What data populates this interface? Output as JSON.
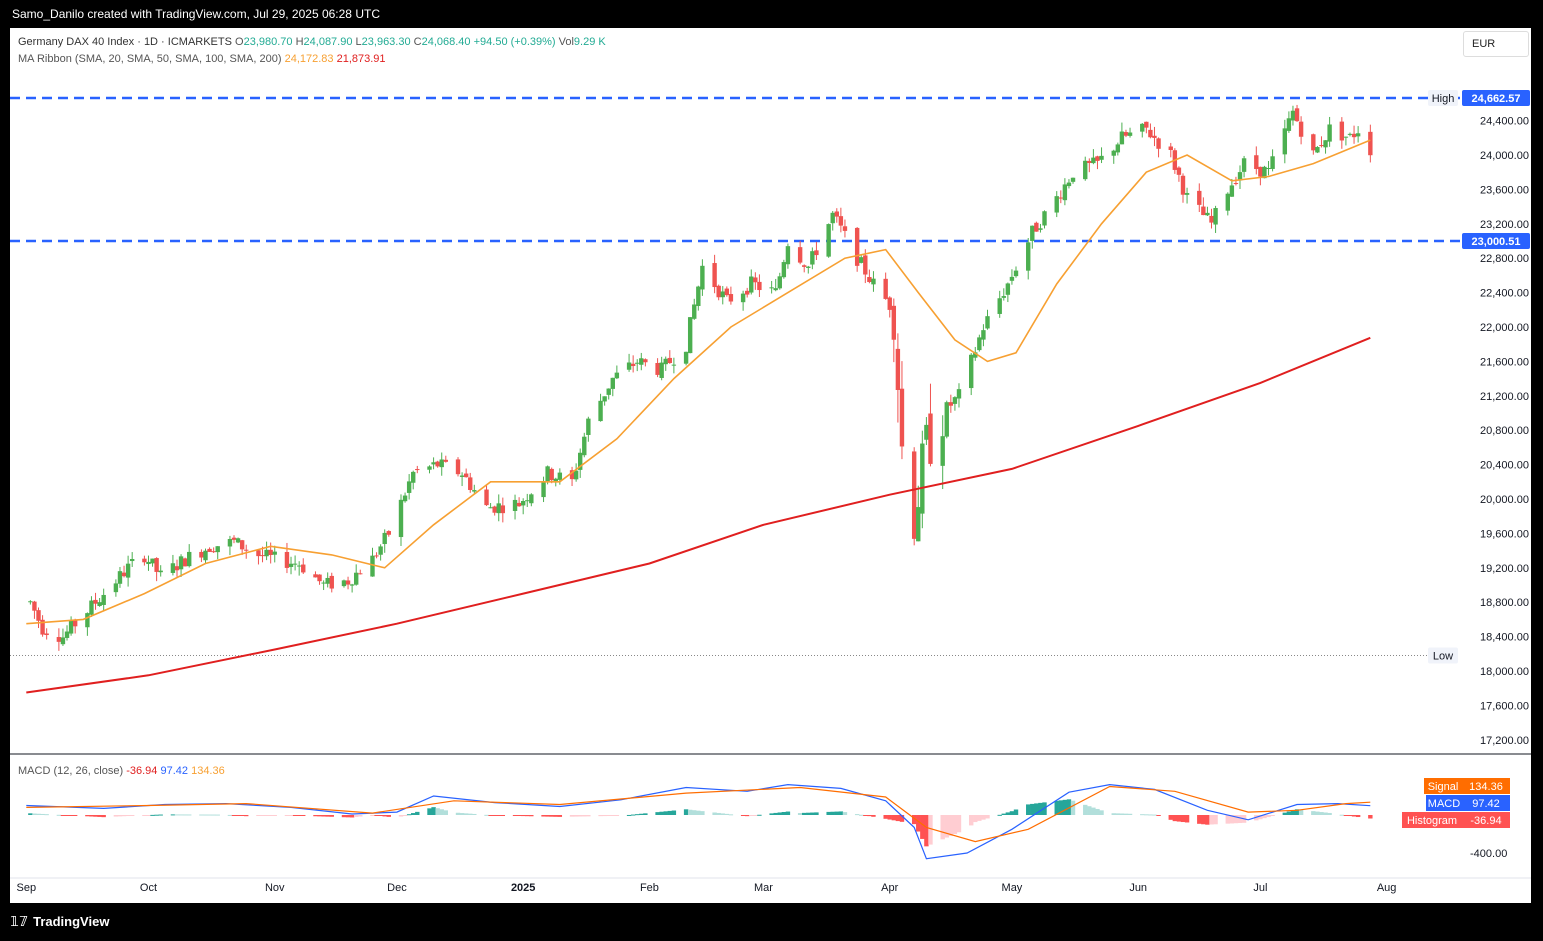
{
  "topbar": {
    "caption": "Samo_Danilo created with TradingView.com, Jul 29, 2025 06:28 UTC"
  },
  "footer": {
    "brand": "TradingView",
    "logo_icon": "tradingview-logo-icon"
  },
  "header": {
    "symbol": "Germany DAX 40 Index · 1D · ICMARKETS",
    "open_label": "O",
    "open": "23,980.70",
    "high_label": "H",
    "high": "24,087.90",
    "low_label": "L",
    "low": "23,963.30",
    "close_label": "C",
    "close": "24,068.40",
    "change": "+94.50 (+0.39%)",
    "vol_label": "Vol",
    "volume": "9.29 K",
    "ma_label": "MA Ribbon (SMA, 20, SMA, 50, SMA, 100, SMA, 200)",
    "ma_fast": "24,172.83",
    "ma_slow": "21,873.91",
    "currency": "EUR"
  },
  "macd_header": {
    "label": "MACD (12, 26, close)",
    "hist": "-36.94",
    "macd": "97.42",
    "signal": "134.36"
  },
  "colors": {
    "up": "#4caf50",
    "down": "#ef5350",
    "ma20": "#f7a032",
    "ma200": "#e01f1f",
    "level": "#2962ff",
    "macd": "#2962ff",
    "signal": "#ff6d00",
    "hist_up_strong": "#26a69a",
    "hist_up_weak": "#b2dfdb",
    "hist_down_strong": "#ff5252",
    "hist_down_weak": "#ffcdd2",
    "axis_text": "#131722"
  },
  "chart_data": [
    {
      "type": "candlestick",
      "title": "Germany DAX 40 Index · 1D · ICMARKETS",
      "y_ticks": [
        "17,200.00",
        "17,600.00",
        "18,000.00",
        "18,400.00",
        "18,800.00",
        "19,200.00",
        "19,600.00",
        "20,000.00",
        "20,400.00",
        "20,800.00",
        "21,200.00",
        "21,600.00",
        "22,000.00",
        "22,400.00",
        "22,800.00",
        "23,200.00",
        "23,600.00",
        "24,000.00",
        "24,400.00"
      ],
      "y_tick_values": [
        17200,
        17600,
        18000,
        18400,
        18800,
        19200,
        19600,
        20000,
        20400,
        20800,
        21200,
        21600,
        22000,
        22400,
        22800,
        23200,
        23600,
        24000,
        24400
      ],
      "ylim": [
        17000,
        24800
      ],
      "x_ticks": [
        "Sep",
        "Oct",
        "Nov",
        "Dec",
        "2025",
        "Feb",
        "Mar",
        "Apr",
        "May",
        "Jun",
        "Jul",
        "Aug"
      ],
      "x_tick_dates": [
        "2024-09-01",
        "2024-10-01",
        "2024-11-01",
        "2024-12-01",
        "2025-01-01",
        "2025-02-01",
        "2025-03-01",
        "2025-04-01",
        "2025-05-01",
        "2025-06-01",
        "2025-07-01",
        "2025-08-01"
      ],
      "levels": [
        {
          "name": "resistance",
          "value": 24662.57,
          "label": "24,662.57",
          "style": "dashed"
        },
        {
          "name": "support",
          "value": 23000.51,
          "label": "23,000.51",
          "style": "dashed"
        }
      ],
      "high_marker": {
        "label": "High",
        "value": 24662.57
      },
      "low_marker": {
        "label": "Low",
        "value": 18180
      },
      "close_path": [
        [
          "2024-09-01",
          18900
        ],
        [
          "2024-09-05",
          18500
        ],
        [
          "2024-09-10",
          18400
        ],
        [
          "2024-09-16",
          18700
        ],
        [
          "2024-09-20",
          18900
        ],
        [
          "2024-09-26",
          19200
        ],
        [
          "2024-09-30",
          19350
        ],
        [
          "2024-10-04",
          19100
        ],
        [
          "2024-10-10",
          19300
        ],
        [
          "2024-10-16",
          19450
        ],
        [
          "2024-10-22",
          19500
        ],
        [
          "2024-10-28",
          19350
        ],
        [
          "2024-11-01",
          19300
        ],
        [
          "2024-11-07",
          19250
        ],
        [
          "2024-11-13",
          19000
        ],
        [
          "2024-11-19",
          19050
        ],
        [
          "2024-11-25",
          19300
        ],
        [
          "2024-11-29",
          19600
        ],
        [
          "2024-12-05",
          20300
        ],
        [
          "2024-12-11",
          20400
        ],
        [
          "2024-12-17",
          20300
        ],
        [
          "2024-12-23",
          19900
        ],
        [
          "2024-12-31",
          19950
        ],
        [
          "2025-01-07",
          20300
        ],
        [
          "2025-01-13",
          20200
        ],
        [
          "2025-01-17",
          20900
        ],
        [
          "2025-01-23",
          21400
        ],
        [
          "2025-01-29",
          21600
        ],
        [
          "2025-02-04",
          21500
        ],
        [
          "2025-02-10",
          21800
        ],
        [
          "2025-02-14",
          22700
        ],
        [
          "2025-02-20",
          22300
        ],
        [
          "2025-02-26",
          22500
        ],
        [
          "2025-03-04",
          22400
        ],
        [
          "2025-03-07",
          23000
        ],
        [
          "2025-03-12",
          22700
        ],
        [
          "2025-03-18",
          23300
        ],
        [
          "2025-03-24",
          22800
        ],
        [
          "2025-03-28",
          22500
        ],
        [
          "2025-04-02",
          22200
        ],
        [
          "2025-04-04",
          20600
        ],
        [
          "2025-04-07",
          19800
        ],
        [
          "2025-04-10",
          20600
        ],
        [
          "2025-04-14",
          21000
        ],
        [
          "2025-04-18",
          21200
        ],
        [
          "2025-04-24",
          22000
        ],
        [
          "2025-04-30",
          22500
        ],
        [
          "2025-05-06",
          23100
        ],
        [
          "2025-05-12",
          23500
        ],
        [
          "2025-05-16",
          23800
        ],
        [
          "2025-05-22",
          23900
        ],
        [
          "2025-05-28",
          24200
        ],
        [
          "2025-06-03",
          24300
        ],
        [
          "2025-06-09",
          24000
        ],
        [
          "2025-06-13",
          23500
        ],
        [
          "2025-06-19",
          23200
        ],
        [
          "2025-06-23",
          23600
        ],
        [
          "2025-06-27",
          23900
        ],
        [
          "2025-07-03",
          23800
        ],
        [
          "2025-07-09",
          24500
        ],
        [
          "2025-07-14",
          24000
        ],
        [
          "2025-07-18",
          24300
        ],
        [
          "2025-07-23",
          24200
        ],
        [
          "2025-07-25",
          24300
        ],
        [
          "2025-07-28",
          24068
        ]
      ],
      "ma20_path": [
        [
          "2024-09-01",
          18550
        ],
        [
          "2024-09-15",
          18600
        ],
        [
          "2024-09-30",
          18900
        ],
        [
          "2024-10-15",
          19250
        ],
        [
          "2024-10-31",
          19450
        ],
        [
          "2024-11-15",
          19350
        ],
        [
          "2024-11-28",
          19200
        ],
        [
          "2024-12-10",
          19700
        ],
        [
          "2024-12-24",
          20200
        ],
        [
          "2025-01-10",
          20200
        ],
        [
          "2025-01-24",
          20700
        ],
        [
          "2025-02-07",
          21400
        ],
        [
          "2025-02-21",
          22000
        ],
        [
          "2025-03-07",
          22400
        ],
        [
          "2025-03-21",
          22800
        ],
        [
          "2025-03-31",
          22900
        ],
        [
          "2025-04-08",
          22400
        ],
        [
          "2025-04-17",
          21850
        ],
        [
          "2025-04-25",
          21600
        ],
        [
          "2025-05-02",
          21700
        ],
        [
          "2025-05-12",
          22500
        ],
        [
          "2025-05-23",
          23200
        ],
        [
          "2025-06-03",
          23800
        ],
        [
          "2025-06-13",
          24000
        ],
        [
          "2025-06-24",
          23700
        ],
        [
          "2025-07-03",
          23750
        ],
        [
          "2025-07-14",
          23900
        ],
        [
          "2025-07-28",
          24172.83
        ]
      ],
      "ma200_path": [
        [
          "2024-09-01",
          17750
        ],
        [
          "2024-10-01",
          17950
        ],
        [
          "2024-11-01",
          18250
        ],
        [
          "2024-12-01",
          18550
        ],
        [
          "2025-01-01",
          18900
        ],
        [
          "2025-02-01",
          19250
        ],
        [
          "2025-03-01",
          19700
        ],
        [
          "2025-04-01",
          20050
        ],
        [
          "2025-05-01",
          20350
        ],
        [
          "2025-06-01",
          20850
        ],
        [
          "2025-07-01",
          21350
        ],
        [
          "2025-07-28",
          21873.91
        ]
      ]
    },
    {
      "type": "macd",
      "title": "MACD (12, 26, close)",
      "y_ticks": [
        "-400.00"
      ],
      "y_tick_values": [
        -400
      ],
      "ylim": [
        -560,
        360
      ],
      "legend": [
        {
          "name": "Signal",
          "value": "134.36"
        },
        {
          "name": "MACD",
          "value": "97.42"
        },
        {
          "name": "Histogram",
          "value": "-36.94"
        }
      ],
      "macd_path": [
        [
          "2024-09-01",
          100
        ],
        [
          "2024-09-20",
          70
        ],
        [
          "2024-10-05",
          110
        ],
        [
          "2024-10-20",
          120
        ],
        [
          "2024-11-05",
          80
        ],
        [
          "2024-11-20",
          10
        ],
        [
          "2024-12-01",
          30
        ],
        [
          "2024-12-10",
          200
        ],
        [
          "2024-12-25",
          130
        ],
        [
          "2025-01-10",
          90
        ],
        [
          "2025-01-25",
          160
        ],
        [
          "2025-02-10",
          290
        ],
        [
          "2025-02-25",
          250
        ],
        [
          "2025-03-07",
          320
        ],
        [
          "2025-03-20",
          280
        ],
        [
          "2025-03-31",
          150
        ],
        [
          "2025-04-07",
          -130
        ],
        [
          "2025-04-10",
          -460
        ],
        [
          "2025-04-20",
          -400
        ],
        [
          "2025-05-01",
          -150
        ],
        [
          "2025-05-15",
          240
        ],
        [
          "2025-05-25",
          320
        ],
        [
          "2025-06-05",
          270
        ],
        [
          "2025-06-18",
          50
        ],
        [
          "2025-06-28",
          -50
        ],
        [
          "2025-07-10",
          110
        ],
        [
          "2025-07-20",
          120
        ],
        [
          "2025-07-28",
          97.42
        ]
      ],
      "signal_path": [
        [
          "2024-09-01",
          80
        ],
        [
          "2024-10-01",
          100
        ],
        [
          "2024-10-25",
          120
        ],
        [
          "2024-11-25",
          20
        ],
        [
          "2024-12-15",
          150
        ],
        [
          "2025-01-10",
          110
        ],
        [
          "2025-02-10",
          230
        ],
        [
          "2025-03-10",
          290
        ],
        [
          "2025-03-31",
          190
        ],
        [
          "2025-04-10",
          -130
        ],
        [
          "2025-04-22",
          -280
        ],
        [
          "2025-05-05",
          -150
        ],
        [
          "2025-05-25",
          300
        ],
        [
          "2025-06-10",
          250
        ],
        [
          "2025-06-28",
          30
        ],
        [
          "2025-07-10",
          50
        ],
        [
          "2025-07-22",
          120
        ],
        [
          "2025-07-28",
          134.36
        ]
      ]
    }
  ]
}
